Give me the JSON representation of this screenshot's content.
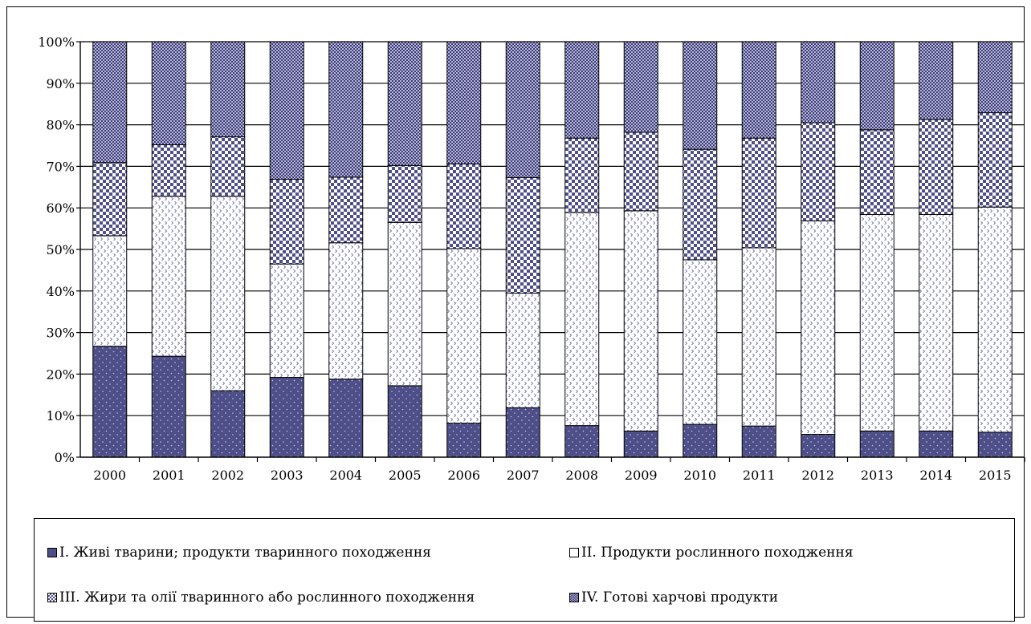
{
  "chart_data": {
    "type": "bar",
    "stacked": true,
    "percent_stacked": true,
    "categories": [
      "2000",
      "2001",
      "2002",
      "2003",
      "2004",
      "2005",
      "2006",
      "2007",
      "2008",
      "2009",
      "2010",
      "2011",
      "2012",
      "2013",
      "2014",
      "2015"
    ],
    "series": [
      {
        "name": "І. Живі тварини; продукти тваринного походження",
        "values": [
          26.7,
          24.3,
          16.0,
          19.2,
          18.8,
          17.2,
          8.2,
          11.9,
          7.6,
          6.3,
          7.9,
          7.5,
          5.5,
          6.3,
          6.3,
          6.0
        ]
      },
      {
        "name": "ІІ. Продукти рослинного походження",
        "values": [
          26.6,
          38.5,
          46.8,
          27.3,
          32.8,
          39.3,
          42.0,
          27.6,
          51.3,
          53.0,
          39.6,
          42.9,
          51.4,
          52.1,
          52.1,
          54.2
        ]
      },
      {
        "name": "ІІІ. Жири та олії тваринного або рослинного походження",
        "values": [
          17.6,
          12.4,
          14.3,
          20.4,
          15.8,
          13.7,
          20.4,
          27.8,
          17.9,
          18.9,
          26.6,
          26.4,
          23.6,
          20.4,
          22.9,
          22.7
        ]
      },
      {
        "name": "IV. Готові харчові продукти",
        "values": [
          29.1,
          24.8,
          22.9,
          33.1,
          32.6,
          29.8,
          29.4,
          32.7,
          23.2,
          21.8,
          25.9,
          23.2,
          19.5,
          21.2,
          18.7,
          17.1
        ]
      }
    ],
    "ylim": [
      0,
      100
    ],
    "yticks": [
      "0%",
      "10%",
      "20%",
      "30%",
      "40%",
      "50%",
      "60%",
      "70%",
      "80%",
      "90%",
      "100%"
    ],
    "grid": true,
    "legend_position": "bottom",
    "colors": {
      "dark": "#4e4e88",
      "light": "#ffffff",
      "mid": "#6a6aa0"
    }
  },
  "legend": {
    "items": [
      "І. Живі тварини; продукти тваринного походження",
      "ІІ. Продукти рослинного походження",
      "ІІІ. Жири та олії тваринного або рослинного походження",
      "IV. Готові харчові продукти"
    ]
  }
}
